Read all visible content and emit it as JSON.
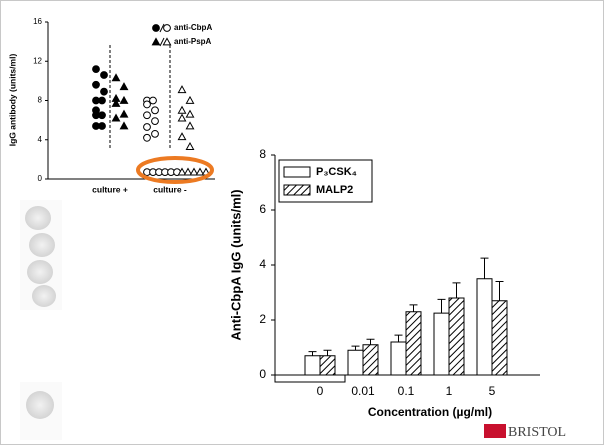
{
  "chart_data": [
    {
      "type": "dotplot",
      "y_label": "IgG antibody (units/ml)",
      "categories": [
        "culture +",
        "culture -"
      ],
      "filled": [
        true,
        false
      ],
      "ylim": [
        0,
        16
      ],
      "yticks": [
        0,
        4,
        8,
        12,
        16
      ],
      "series": [
        {
          "name": "anti-CbpA",
          "marker": "circle",
          "color": "#000000",
          "values": [
            [
              11.2,
              10.6,
              9.6,
              8.9,
              8.0,
              8.0,
              7.0,
              6.5,
              6.5,
              5.4,
              5.4
            ],
            [
              8.0,
              8.0,
              7.6,
              7.0,
              6.5,
              5.9,
              5.3,
              4.6,
              4.2,
              0.7,
              0.7,
              0.7,
              0.7,
              0.7,
              0.7
            ]
          ]
        },
        {
          "name": "anti-PspA",
          "marker": "triangle",
          "color": "#000000",
          "values": [
            [
              10.3,
              9.4,
              8.2,
              8.0,
              7.7,
              6.6,
              6.2,
              5.4
            ],
            [
              9.1,
              8.0,
              7.0,
              6.6,
              6.2,
              5.4,
              4.3,
              3.3,
              0.7,
              0.7,
              0.7,
              0.7,
              0.7
            ]
          ]
        }
      ]
    },
    {
      "type": "bar",
      "x_label": "Concentration (µg/ml)",
      "y_label": "Anti-CbpA IgG (units/ml)",
      "categories": [
        "0",
        "0.01",
        "0.1",
        "1",
        "5"
      ],
      "ylim": [
        0,
        8
      ],
      "yticks": [
        0,
        2,
        4,
        6,
        8
      ],
      "series": [
        {
          "name": "P₃CSK₄",
          "color": "#ffffff",
          "hatch": false,
          "values": [
            0.7,
            0.9,
            1.2,
            2.25,
            3.5
          ],
          "errors": [
            0.15,
            0.15,
            0.25,
            0.5,
            0.75
          ]
        },
        {
          "name": "MALP2",
          "color": "#ffffff",
          "hatch": true,
          "values": [
            0.7,
            1.1,
            2.3,
            2.8,
            2.7
          ],
          "errors": [
            0.2,
            0.2,
            0.25,
            0.55,
            0.7
          ]
        }
      ]
    }
  ],
  "logo": "BRISTOL"
}
